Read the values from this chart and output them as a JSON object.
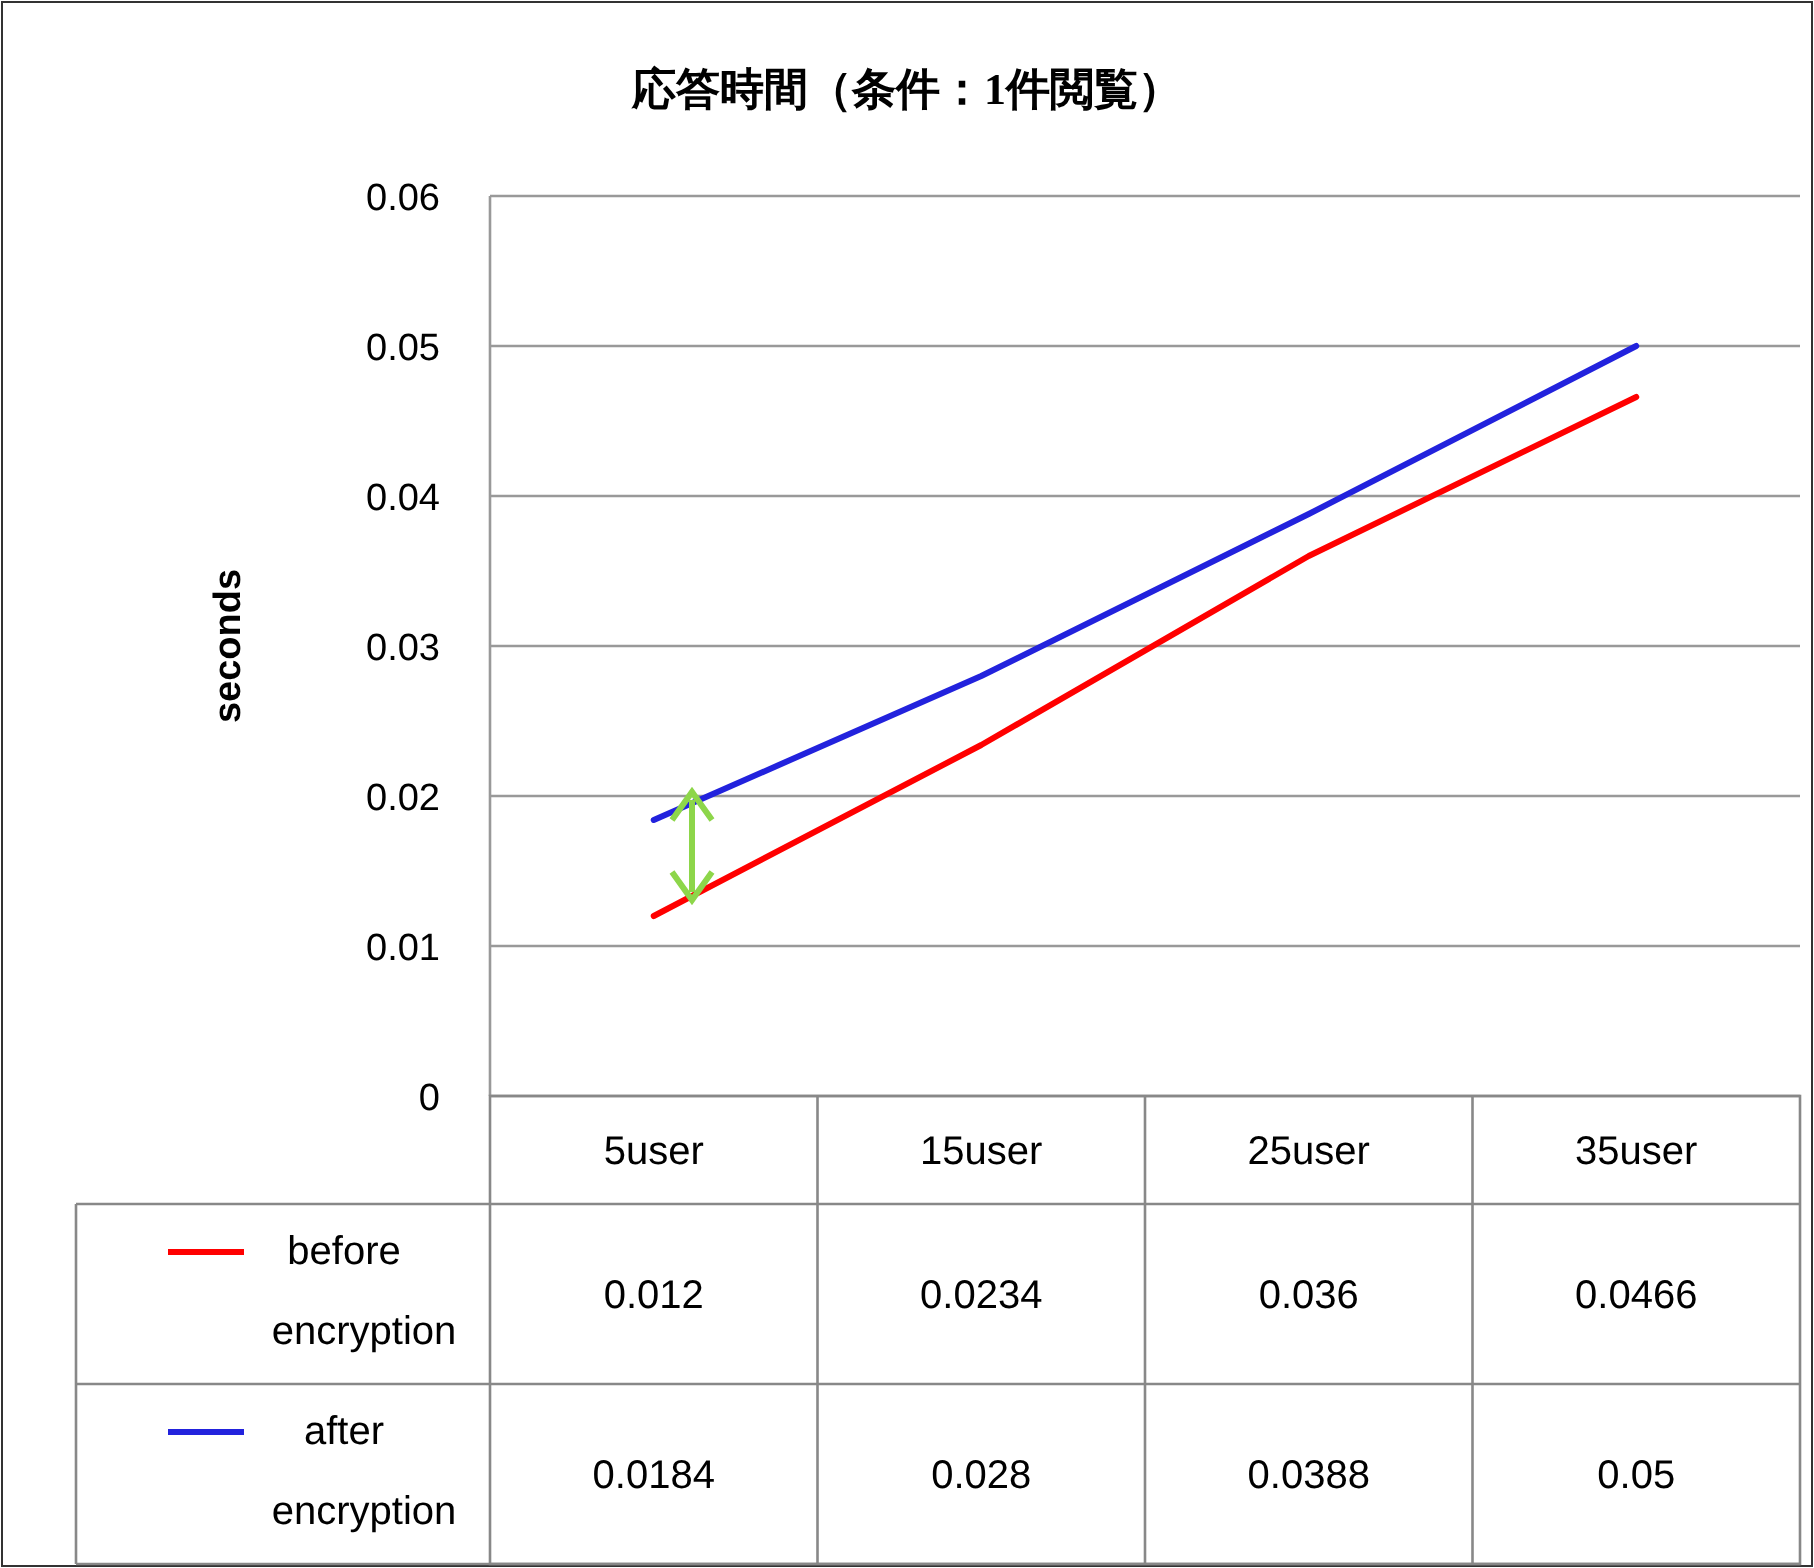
{
  "chart_data": {
    "type": "line",
    "title": "応答時間（条件：1件閲覧）",
    "ylabel": "seconds",
    "categories": [
      "5user",
      "15user",
      "25user",
      "35user"
    ],
    "series": [
      {
        "name": "before encryption",
        "color": "#ff0000",
        "values": [
          0.012,
          0.0234,
          0.036,
          0.0466
        ]
      },
      {
        "name": "after encryption",
        "color": "#2222dd",
        "values": [
          0.0184,
          0.028,
          0.0388,
          0.05
        ]
      }
    ],
    "ylim": [
      0,
      0.06
    ],
    "yticks": [
      0,
      0.01,
      0.02,
      0.03,
      0.04,
      0.05,
      0.06
    ],
    "grid": "y",
    "legend": "bottom left",
    "data_labels": true,
    "marker": "none",
    "line_style": "solid"
  }
}
